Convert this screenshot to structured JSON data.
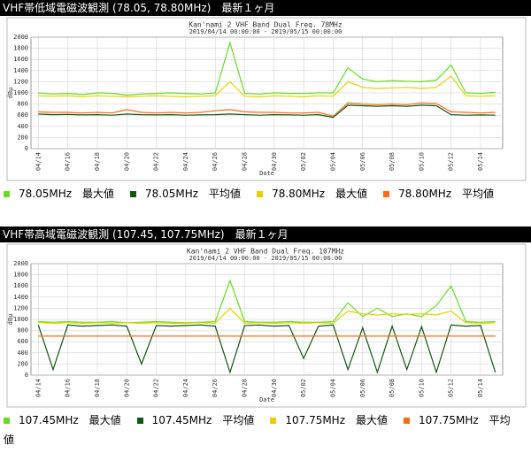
{
  "chart_data": [
    {
      "type": "line",
      "header": "VHF帯低域電磁波観測 (78.05, 78.80MHz)　最新１ヶ月",
      "title": "Kan'nami 2 VHF Band Dual Freq. 78MHz",
      "subtitle": "2019/04/14 00:00:00 - 2019/05/15 00:00:00",
      "y_label": "dBμ",
      "x_label": "Date",
      "categories": [
        "04/14",
        null,
        "04/16",
        null,
        "04/18",
        null,
        "04/20",
        null,
        "04/22",
        null,
        "04/24",
        null,
        "04/26",
        null,
        "04/28",
        null,
        "04/30",
        null,
        "05/02",
        null,
        "05/04",
        null,
        "05/06",
        null,
        "05/08",
        null,
        "05/10",
        null,
        "05/12",
        null,
        "05/14",
        null
      ],
      "series": [
        {
          "name": "78.05MHz　最大値",
          "color": "#66dd22",
          "values": [
            1000,
            980,
            990,
            970,
            1000,
            990,
            960,
            980,
            990,
            1000,
            990,
            980,
            1000,
            1900,
            990,
            980,
            1000,
            990,
            990,
            1000,
            1000,
            1450,
            1250,
            1200,
            1220,
            1210,
            1200,
            1230,
            1500,
            1000,
            990,
            1010
          ]
        },
        {
          "name": "78.05MHz　平均値",
          "color": "#115511",
          "values": [
            620,
            610,
            615,
            605,
            610,
            600,
            620,
            610,
            605,
            610,
            600,
            605,
            610,
            620,
            610,
            600,
            610,
            605,
            600,
            610,
            560,
            780,
            770,
            760,
            770,
            760,
            780,
            770,
            610,
            600,
            605,
            600
          ]
        },
        {
          "name": "78.80MHz　最大値",
          "color": "#e6d200",
          "values": [
            950,
            940,
            950,
            930,
            950,
            940,
            930,
            940,
            950,
            940,
            930,
            940,
            950,
            1200,
            940,
            930,
            950,
            940,
            930,
            950,
            940,
            1200,
            1100,
            1080,
            1090,
            1100,
            1080,
            1100,
            1300,
            950,
            940,
            950
          ]
        },
        {
          "name": "78.80MHz　平均値",
          "color": "#ff6a13",
          "values": [
            660,
            650,
            650,
            640,
            650,
            640,
            700,
            650,
            640,
            650,
            640,
            650,
            680,
            700,
            660,
            650,
            650,
            640,
            640,
            650,
            580,
            820,
            800,
            790,
            800,
            790,
            820,
            810,
            660,
            650,
            640,
            650
          ]
        }
      ],
      "ylim": [
        0,
        2000
      ],
      "yticks": [
        0,
        200,
        400,
        600,
        800,
        1000,
        1200,
        1400,
        1600,
        1800,
        2000
      ],
      "grid": true
    },
    {
      "type": "line",
      "header": "VHF帯高域電磁波観測 (107.45, 107.75MHz)　最新１ヶ月",
      "title": "Kan'nami 2 VHF Band Dual Freq. 107MHz",
      "subtitle": "2019/04/14 00:00:00 - 2019/05/15 00:00:00",
      "y_label": "dBμ",
      "x_label": "Date",
      "categories": [
        "04/14",
        null,
        "04/16",
        null,
        "04/18",
        null,
        "04/20",
        null,
        "04/22",
        null,
        "04/24",
        null,
        "04/26",
        null,
        "04/28",
        null,
        "04/30",
        null,
        "05/02",
        null,
        "05/04",
        null,
        "05/06",
        null,
        "05/08",
        null,
        "05/10",
        null,
        "05/12",
        null,
        "05/14",
        null
      ],
      "series": [
        {
          "name": "107.45MHz　最大値",
          "color": "#66dd22",
          "values": [
            960,
            950,
            960,
            950,
            950,
            960,
            940,
            950,
            960,
            950,
            940,
            950,
            960,
            1700,
            960,
            950,
            950,
            960,
            950,
            950,
            960,
            1300,
            1050,
            1200,
            1050,
            1100,
            1050,
            1250,
            1600,
            960,
            950,
            960
          ]
        },
        {
          "name": "107.45MHz　平均値",
          "color": "#115511",
          "values": [
            900,
            100,
            900,
            880,
            890,
            900,
            880,
            200,
            890,
            880,
            890,
            900,
            880,
            50,
            890,
            900,
            880,
            890,
            300,
            880,
            900,
            100,
            850,
            50,
            880,
            100,
            870,
            50,
            900,
            880,
            890,
            50
          ]
        },
        {
          "name": "107.75MHz　最大値",
          "color": "#e6d200",
          "values": [
            940,
            930,
            940,
            930,
            940,
            930,
            940,
            930,
            940,
            930,
            930,
            940,
            930,
            1200,
            930,
            940,
            930,
            940,
            930,
            940,
            930,
            1150,
            1100,
            1080,
            1100,
            1090,
            1100,
            1080,
            1150,
            940,
            930,
            940
          ]
        },
        {
          "name": "107.75MHz　平均値",
          "color": "#ff6a13",
          "values": [
            700,
            700,
            700,
            700,
            700,
            700,
            700,
            700,
            700,
            700,
            700,
            700,
            700,
            700,
            700,
            700,
            700,
            700,
            700,
            700,
            700,
            700,
            700,
            700,
            700,
            700,
            700,
            700,
            700,
            700,
            700,
            700
          ]
        }
      ],
      "ylim": [
        0,
        2000
      ],
      "yticks": [
        0,
        200,
        400,
        600,
        800,
        1000,
        1200,
        1400,
        1600,
        1800,
        2000
      ],
      "grid": true
    }
  ]
}
